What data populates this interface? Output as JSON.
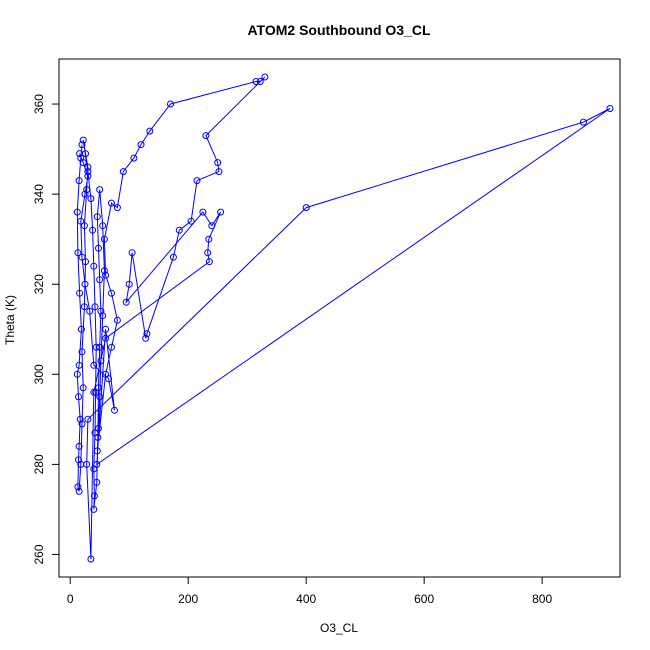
{
  "colors": {
    "series": "#0000ff",
    "axis": "#000000",
    "background": "#ffffff"
  },
  "chart_data": {
    "type": "line",
    "markers": "open-circle",
    "title": "ATOM2 Southbound O3_CL",
    "xlabel": "O3_CL",
    "ylabel": "Theta (K)",
    "xlim": [
      0,
      950
    ],
    "ylim": [
      255,
      370
    ],
    "xticks": [
      0,
      200,
      400,
      600,
      800
    ],
    "yticks": [
      260,
      280,
      300,
      320,
      340,
      360
    ],
    "grid": false,
    "legend": "none",
    "series": [
      {
        "points": [
          [
            20,
            351
          ],
          [
            18,
            348
          ],
          [
            15,
            343
          ],
          [
            12,
            336
          ],
          [
            13,
            327
          ],
          [
            16,
            318
          ],
          [
            19,
            310
          ],
          [
            15,
            302
          ],
          [
            12,
            300
          ],
          [
            14,
            295
          ],
          [
            17,
            290
          ],
          [
            15,
            284
          ],
          [
            14,
            281
          ],
          [
            13,
            275
          ],
          [
            15,
            274
          ],
          [
            18,
            280
          ],
          [
            20,
            289
          ],
          [
            22,
            297
          ],
          [
            20,
            305
          ],
          [
            24,
            315
          ],
          [
            26,
            325
          ],
          [
            24,
            333
          ],
          [
            28,
            341
          ],
          [
            30,
            346
          ],
          [
            26,
            349
          ],
          [
            22,
            352
          ],
          [
            30,
            345
          ],
          [
            35,
            339
          ],
          [
            38,
            332
          ],
          [
            40,
            324
          ],
          [
            42,
            315
          ],
          [
            44,
            306
          ],
          [
            43,
            296
          ],
          [
            42,
            287
          ],
          [
            40,
            279
          ],
          [
            41,
            273
          ],
          [
            40,
            270
          ],
          [
            45,
            276
          ],
          [
            47,
            286
          ],
          [
            48,
            297
          ],
          [
            50,
            306
          ],
          [
            52,
            314
          ],
          [
            50,
            321
          ],
          [
            48,
            328
          ],
          [
            46,
            335
          ],
          [
            50,
            341
          ],
          [
            55,
            333
          ],
          [
            58,
            323
          ],
          [
            55,
            313
          ],
          [
            52,
            303
          ],
          [
            50,
            295
          ],
          [
            48,
            288
          ],
          [
            46,
            283
          ],
          [
            60,
            300
          ],
          [
            70,
            306
          ],
          [
            80,
            312
          ],
          [
            70,
            318
          ],
          [
            60,
            322
          ],
          [
            58,
            330
          ],
          [
            70,
            338
          ],
          [
            80,
            337
          ],
          [
            90,
            345
          ],
          [
            108,
            348
          ],
          [
            120,
            351
          ],
          [
            135,
            354
          ],
          [
            170,
            360
          ],
          [
            315,
            365
          ],
          [
            322,
            365
          ],
          [
            330,
            366
          ],
          [
            230,
            353
          ],
          [
            250,
            347
          ],
          [
            252,
            345
          ],
          [
            215,
            343
          ],
          [
            205,
            334
          ],
          [
            185,
            332
          ],
          [
            175,
            326
          ],
          [
            130,
            309
          ],
          [
            128,
            308
          ],
          [
            105,
            327
          ],
          [
            100,
            320
          ],
          [
            95,
            316
          ],
          [
            225,
            336
          ],
          [
            240,
            333
          ],
          [
            255,
            336
          ],
          [
            235,
            330
          ],
          [
            233,
            327
          ],
          [
            236,
            325
          ],
          [
            60,
            308
          ],
          [
            40,
            296
          ],
          [
            35,
            259
          ],
          [
            28,
            280
          ],
          [
            30,
            290
          ],
          [
            400,
            337
          ],
          [
            870,
            356
          ],
          [
            915,
            359
          ],
          [
            45,
            280
          ],
          [
            60,
            310
          ],
          [
            75,
            292
          ],
          [
            65,
            299
          ],
          [
            40,
            302
          ],
          [
            33,
            314
          ],
          [
            25,
            320
          ],
          [
            20,
            326
          ],
          [
            18,
            334
          ],
          [
            25,
            340
          ],
          [
            30,
            344
          ],
          [
            22,
            347
          ],
          [
            16,
            349
          ]
        ]
      }
    ]
  }
}
